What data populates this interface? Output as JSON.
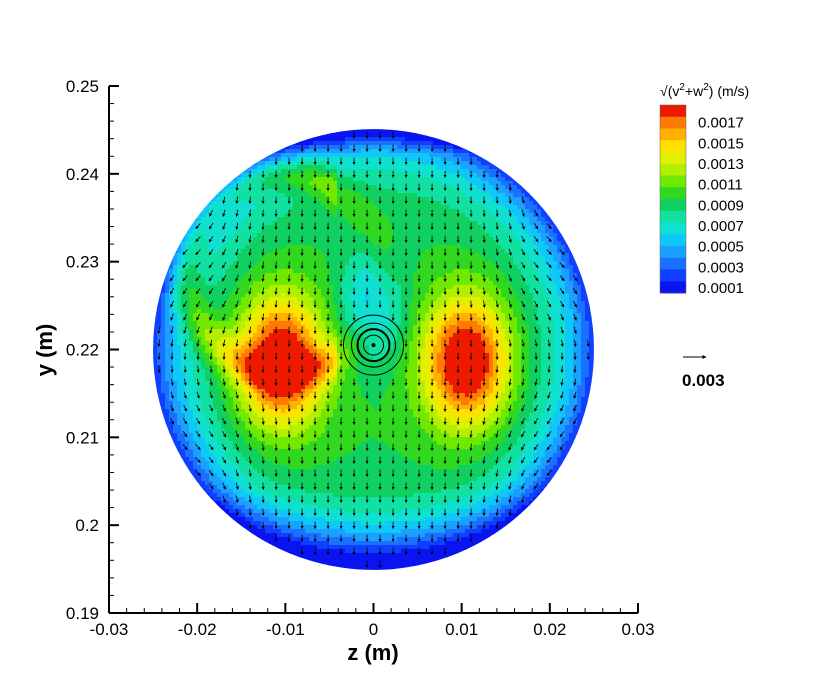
{
  "chart_data": {
    "type": "contour",
    "xlabel": "z  (m)",
    "ylabel": "y  (m)",
    "xlim": [
      -0.03,
      0.03
    ],
    "ylim": [
      0.19,
      0.25
    ],
    "x_ticks": [
      "-0.03",
      "-0.02",
      "-0.01",
      "0",
      "0.01",
      "0.02",
      "0.03"
    ],
    "y_ticks": [
      "0.19",
      "0.2",
      "0.21",
      "0.22",
      "0.23",
      "0.24",
      "0.25"
    ],
    "domain_circle": {
      "center_z": 0.0,
      "center_y": 0.22,
      "radius": 0.025
    },
    "field": {
      "quantity": "√(v²+w²)",
      "vortex_pair": [
        {
          "z": -0.0105,
          "y": 0.2185,
          "peak": 0.00185
        },
        {
          "z": 0.0105,
          "y": 0.2185,
          "peak": 0.00185
        }
      ],
      "center_vortex": {
        "z": 0.0,
        "y": 0.2205
      }
    },
    "legend": {
      "title_parts": {
        "root": "√",
        "open": "(v",
        "sup1": "2",
        "plus": "+w",
        "sup2": "2",
        "close": ")",
        "units": "  (m/s)"
      },
      "placement": "top-right",
      "levels": [
        "0.0017",
        "0.0015",
        "0.0013",
        "0.0011",
        "0.0009",
        "0.0007",
        "0.0005",
        "0.0003",
        "0.0001"
      ],
      "colors": [
        "#ee1a00",
        "#ff7a00",
        "#ffb000",
        "#ffe000",
        "#e2f000",
        "#b0f000",
        "#70e800",
        "#30d820",
        "#10d060",
        "#10e0a0",
        "#10e0d0",
        "#10c8f8",
        "#1aa0ff",
        "#1a70ff",
        "#1040ff",
        "#0a14f0"
      ],
      "vmin": 0.0,
      "vmax": 0.0018
    },
    "reference_vector": {
      "label": "0.003"
    }
  }
}
